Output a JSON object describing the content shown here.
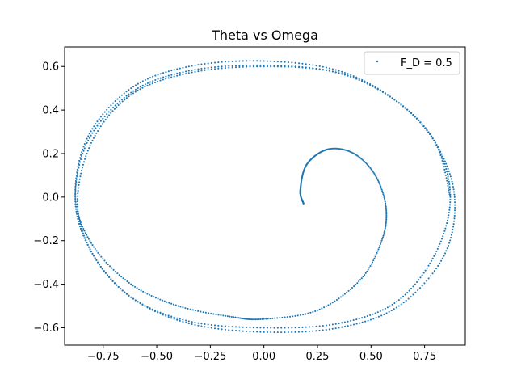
{
  "chart_data": {
    "type": "scatter",
    "title": "Theta vs Omega",
    "xlabel": "",
    "ylabel": "",
    "xlim": [
      -0.93,
      0.94
    ],
    "ylim": [
      -0.68,
      0.69
    ],
    "xticks": [
      -0.75,
      -0.5,
      -0.25,
      0.0,
      0.25,
      0.5,
      0.75
    ],
    "xtick_labels": [
      "−0.75",
      "−0.50",
      "−0.25",
      "0.00",
      "0.25",
      "0.50",
      "0.75"
    ],
    "yticks": [
      -0.6,
      -0.4,
      -0.2,
      0.0,
      0.2,
      0.4,
      0.6
    ],
    "ytick_labels": [
      "−0.6",
      "−0.4",
      "−0.2",
      "0.0",
      "0.2",
      "0.4",
      "0.6"
    ],
    "grid": false,
    "legend": {
      "position": "top-right",
      "entries": [
        "F_D = 0.5"
      ]
    },
    "series": [
      {
        "name": "F_D = 0.5",
        "color": "#1f77b4",
        "marker_size": 1.5,
        "trajectory_waypoints": {
          "x": [
            0.185,
            0.17,
            0.2,
            0.3,
            0.42,
            0.52,
            0.57,
            0.55,
            0.45,
            0.25,
            0.0,
            -0.15,
            -0.4,
            -0.62,
            -0.8,
            -0.88,
            -0.82,
            -0.62,
            -0.35,
            0.0,
            0.35,
            0.62,
            0.8,
            0.89,
            0.84,
            0.63,
            0.35,
            0.0,
            -0.35,
            -0.62,
            -0.8,
            -0.88,
            -0.82,
            -0.62,
            -0.35,
            0.0,
            0.35,
            0.62,
            0.8,
            0.87,
            0.8,
            0.62,
            0.35,
            0.0,
            -0.35,
            -0.62,
            -0.8,
            -0.87,
            -0.8,
            -0.62,
            -0.35,
            0.0,
            0.35,
            0.62,
            0.8,
            0.87
          ],
          "y": [
            -0.03,
            0.03,
            0.15,
            0.22,
            0.2,
            0.1,
            -0.05,
            -0.2,
            -0.38,
            -0.52,
            -0.56,
            -0.55,
            -0.5,
            -0.4,
            -0.22,
            0.0,
            0.28,
            0.5,
            0.6,
            0.625,
            0.58,
            0.44,
            0.25,
            0.0,
            -0.27,
            -0.5,
            -0.6,
            -0.62,
            -0.58,
            -0.46,
            -0.26,
            -0.02,
            0.26,
            0.48,
            0.58,
            0.605,
            0.57,
            0.44,
            0.25,
            0.0,
            -0.26,
            -0.48,
            -0.58,
            -0.6,
            -0.57,
            -0.46,
            -0.26,
            -0.02,
            0.26,
            0.47,
            0.57,
            0.6,
            0.57,
            0.44,
            0.25,
            0.0
          ]
        }
      }
    ]
  }
}
